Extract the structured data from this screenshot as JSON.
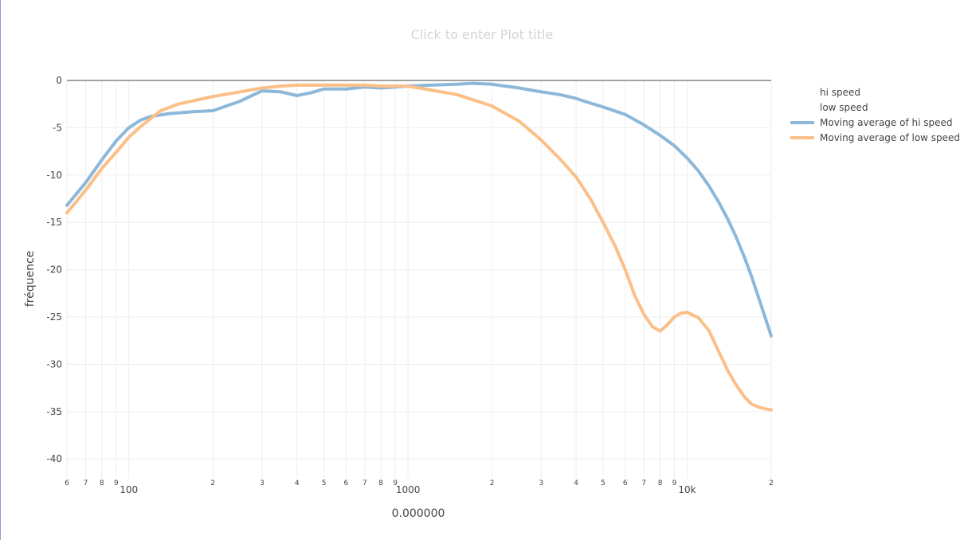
{
  "chart_data": {
    "type": "line",
    "title": "Click to enter Plot title",
    "xlabel": "0.000000",
    "ylabel": "fréquence",
    "x_scale": "log",
    "xlim": [
      60,
      20000
    ],
    "ylim": [
      -42,
      0
    ],
    "y_ticks": [
      0,
      -5,
      -10,
      -15,
      -20,
      -25,
      -30,
      -35,
      -40
    ],
    "x_ticks_major": [
      {
        "value": 100,
        "label": "100"
      },
      {
        "value": 1000,
        "label": "1000"
      },
      {
        "value": 10000,
        "label": "10k"
      }
    ],
    "x_ticks_minor": [
      {
        "value": 60,
        "label": "6"
      },
      {
        "value": 70,
        "label": "7"
      },
      {
        "value": 80,
        "label": "8"
      },
      {
        "value": 90,
        "label": "9"
      },
      {
        "value": 200,
        "label": "2"
      },
      {
        "value": 300,
        "label": "3"
      },
      {
        "value": 400,
        "label": "4"
      },
      {
        "value": 500,
        "label": "5"
      },
      {
        "value": 600,
        "label": "6"
      },
      {
        "value": 700,
        "label": "7"
      },
      {
        "value": 800,
        "label": "8"
      },
      {
        "value": 900,
        "label": "9"
      },
      {
        "value": 2000,
        "label": "2"
      },
      {
        "value": 3000,
        "label": "3"
      },
      {
        "value": 4000,
        "label": "4"
      },
      {
        "value": 5000,
        "label": "5"
      },
      {
        "value": 6000,
        "label": "6"
      },
      {
        "value": 7000,
        "label": "7"
      },
      {
        "value": 8000,
        "label": "8"
      },
      {
        "value": 9000,
        "label": "9"
      },
      {
        "value": 20000,
        "label": "2"
      }
    ],
    "grid": true,
    "legend_position": "right",
    "legend": [
      {
        "name": "hi speed",
        "color": ""
      },
      {
        "name": "low speed",
        "color": ""
      },
      {
        "name": "Moving average of hi speed",
        "color": "#8db8d9"
      },
      {
        "name": "Moving average of low speed",
        "color": "#fbbf88"
      }
    ],
    "series": [
      {
        "name": "Moving average of hi speed",
        "color": "#8db8d9",
        "x": [
          60,
          70,
          80,
          90,
          100,
          110,
          120,
          140,
          170,
          200,
          250,
          300,
          350,
          400,
          450,
          500,
          600,
          700,
          800,
          900,
          1000,
          1200,
          1500,
          1700,
          2000,
          2500,
          3000,
          3500,
          4000,
          4500,
          5000,
          6000,
          7000,
          8000,
          9000,
          10000,
          11000,
          12000,
          13000,
          14000,
          15000,
          16000,
          17000,
          18000,
          19000,
          20000
        ],
        "y": [
          -13.2,
          -10.8,
          -8.4,
          -6.4,
          -5.0,
          -4.2,
          -3.8,
          -3.5,
          -3.3,
          -3.2,
          -2.2,
          -1.1,
          -1.2,
          -1.6,
          -1.3,
          -0.9,
          -0.9,
          -0.7,
          -0.8,
          -0.7,
          -0.6,
          -0.5,
          -0.4,
          -0.3,
          -0.4,
          -0.8,
          -1.2,
          -1.5,
          -1.9,
          -2.4,
          -2.8,
          -3.6,
          -4.7,
          -5.8,
          -6.9,
          -8.2,
          -9.6,
          -11.2,
          -12.9,
          -14.7,
          -16.6,
          -18.6,
          -20.7,
          -22.9,
          -25.0,
          -27.0
        ]
      },
      {
        "name": "Moving average of low speed",
        "color": "#fbbf88",
        "x": [
          60,
          70,
          80,
          90,
          100,
          110,
          120,
          130,
          150,
          200,
          250,
          300,
          350,
          400,
          500,
          600,
          700,
          800,
          900,
          1000,
          1200,
          1500,
          2000,
          2500,
          3000,
          3500,
          4000,
          4500,
          5000,
          5500,
          6000,
          6500,
          7000,
          7500,
          8000,
          8500,
          9000,
          9500,
          10000,
          11000,
          12000,
          13000,
          14000,
          15000,
          16000,
          17000,
          18000,
          19000,
          20000
        ],
        "y": [
          -14.0,
          -11.6,
          -9.3,
          -7.6,
          -6.0,
          -4.9,
          -4.0,
          -3.2,
          -2.5,
          -1.7,
          -1.2,
          -0.8,
          -0.6,
          -0.5,
          -0.5,
          -0.5,
          -0.5,
          -0.6,
          -0.6,
          -0.6,
          -1.0,
          -1.5,
          -2.7,
          -4.3,
          -6.3,
          -8.3,
          -10.2,
          -12.5,
          -15.0,
          -17.4,
          -20.0,
          -22.8,
          -24.7,
          -26.0,
          -26.5,
          -25.8,
          -25.0,
          -24.6,
          -24.5,
          -25.1,
          -26.5,
          -28.7,
          -30.7,
          -32.2,
          -33.4,
          -34.2,
          -34.5,
          -34.7,
          -34.8
        ]
      }
    ]
  }
}
